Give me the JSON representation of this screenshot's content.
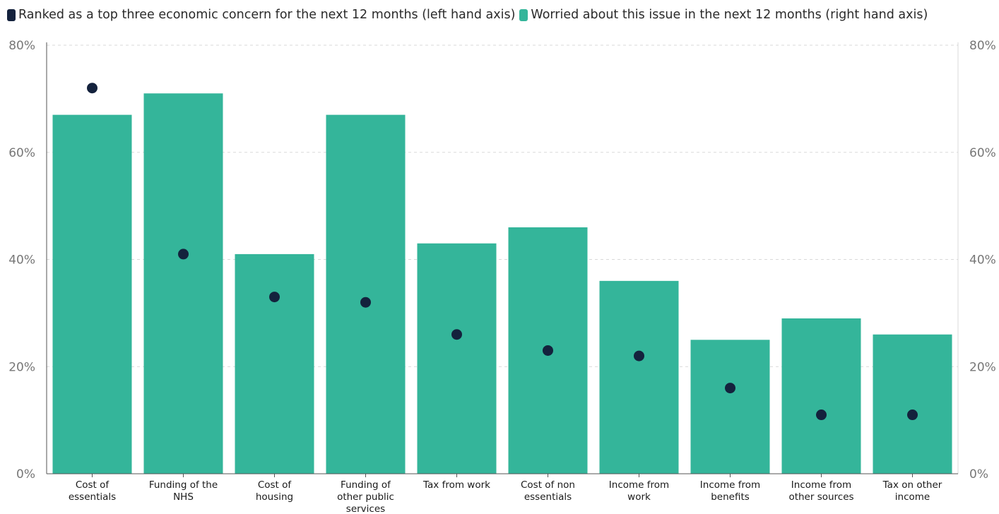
{
  "legend": {
    "series1_label": "Ranked as a top three economic concern for the next 12 months (left hand axis)",
    "series2_label": "Worried about this issue in the next 12 months (right hand axis)"
  },
  "colors": {
    "dot": "#14223d",
    "bar": "#34b59a",
    "grid": "#d9d9d9",
    "axis": "#555555"
  },
  "chart_data": {
    "type": "bar",
    "title": "",
    "categories": [
      [
        "Cost of",
        "essentials"
      ],
      [
        "Funding of the",
        "NHS"
      ],
      [
        "Cost of",
        "housing"
      ],
      [
        "Funding of",
        "other public",
        "services"
      ],
      [
        "Tax from work"
      ],
      [
        "Cost of non",
        "essentials"
      ],
      [
        "Income from",
        "work"
      ],
      [
        "Income from",
        "benefits"
      ],
      [
        "Income from",
        "other sources"
      ],
      [
        "Tax on other",
        "income"
      ]
    ],
    "series": [
      {
        "name": "Ranked as a top three economic concern for the next 12 months (left hand axis)",
        "type": "scatter",
        "axis": "left",
        "values": [
          72,
          41,
          33,
          32,
          26,
          23,
          22,
          16,
          11,
          11
        ]
      },
      {
        "name": "Worried about this issue in the next 12 months (right hand axis)",
        "type": "bar",
        "axis": "right",
        "values": [
          67,
          71,
          41,
          67,
          43,
          46,
          36,
          25,
          29,
          26
        ]
      }
    ],
    "ylim_left": [
      0,
      80
    ],
    "ylim_right": [
      0,
      80
    ],
    "yticks": [
      "0%",
      "20%",
      "40%",
      "60%",
      "80%"
    ],
    "grid": true,
    "legend_position": "top-left"
  }
}
